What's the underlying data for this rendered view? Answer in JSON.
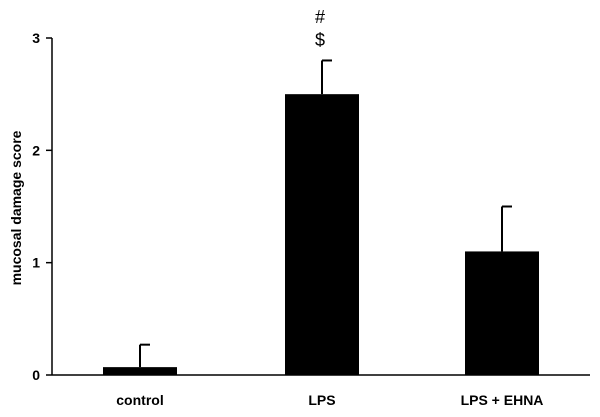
{
  "chart_data": {
    "type": "bar",
    "categories": [
      "control",
      "LPS",
      "LPS + EHNA"
    ],
    "values": [
      0.07,
      2.5,
      1.1
    ],
    "errors": [
      0.2,
      0.3,
      0.4
    ],
    "annotations": [
      {
        "category": "LPS",
        "symbols": [
          "#",
          "$"
        ]
      }
    ],
    "ylabel": "mucosal damage score",
    "xlabel": "",
    "ylim": [
      0,
      3
    ],
    "yticks": [
      0,
      1,
      2,
      3
    ],
    "ytick_labels": [
      "0",
      "1",
      "2",
      "3"
    ],
    "bar_color": "#000000",
    "grid": false
  }
}
